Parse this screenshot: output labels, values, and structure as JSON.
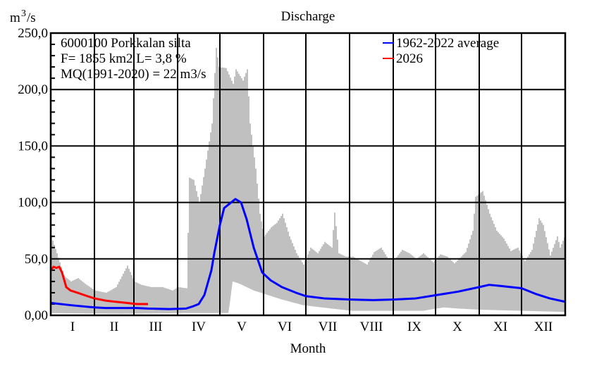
{
  "chart_data": {
    "type": "area",
    "title": "Discharge",
    "ylabel_base": "m",
    "ylabel_sup": "3",
    "ylabel_rest": "/s",
    "xlabel": "Month",
    "ylim": [
      0,
      250
    ],
    "xlim_days": [
      0,
      365
    ],
    "y_ticks": [
      "0,00",
      "50,0",
      "100,0",
      "150,0",
      "200,0",
      "250,0"
    ],
    "y_tick_values": [
      0,
      50,
      100,
      150,
      200,
      250
    ],
    "grid": true,
    "month_labels": [
      "I",
      "II",
      "III",
      "IV",
      "V",
      "VI",
      "VII",
      "VIII",
      "IX",
      "X",
      "XI",
      "XII"
    ],
    "month_start_days": [
      0,
      31,
      59,
      90,
      120,
      151,
      181,
      212,
      243,
      273,
      304,
      334,
      365
    ],
    "info": {
      "station": "6000100 Porkkalan silta",
      "area": "F=   1855 km2 L=  3,8 %",
      "mq": "MQ(1991-2020) = 22 m3/s"
    },
    "legend_position": "top-right",
    "colors": {
      "average": "#0000ff",
      "current": "#ff0000",
      "range": "#c0c0c0"
    },
    "series": [
      {
        "name": "1962-2022 average",
        "color": "#0000ff",
        "points": [
          [
            0,
            11
          ],
          [
            14,
            9
          ],
          [
            31,
            7
          ],
          [
            39,
            6.5
          ],
          [
            61,
            6.5
          ],
          [
            69,
            6
          ],
          [
            84,
            5.5
          ],
          [
            96,
            6
          ],
          [
            101,
            8
          ],
          [
            105,
            10
          ],
          [
            109,
            18
          ],
          [
            114,
            40
          ],
          [
            116,
            55
          ],
          [
            120,
            80
          ],
          [
            123,
            95
          ],
          [
            126,
            98
          ],
          [
            131,
            103
          ],
          [
            135,
            100
          ],
          [
            139,
            85
          ],
          [
            144,
            60
          ],
          [
            150,
            38
          ],
          [
            156,
            31
          ],
          [
            164,
            25
          ],
          [
            174,
            20
          ],
          [
            181,
            17
          ],
          [
            194,
            15
          ],
          [
            212,
            14
          ],
          [
            229,
            13.5
          ],
          [
            244,
            14
          ],
          [
            259,
            15
          ],
          [
            274,
            18
          ],
          [
            289,
            21
          ],
          [
            304,
            25
          ],
          [
            311,
            27
          ],
          [
            319,
            26
          ],
          [
            334,
            24
          ],
          [
            344,
            19
          ],
          [
            354,
            15
          ],
          [
            365,
            12
          ]
        ]
      },
      {
        "name": "2026",
        "color": "#ff0000",
        "points": [
          [
            0,
            40
          ],
          [
            2,
            43
          ],
          [
            4,
            42
          ],
          [
            6,
            43
          ],
          [
            8,
            38
          ],
          [
            11,
            25
          ],
          [
            14,
            22
          ],
          [
            19,
            20
          ],
          [
            26,
            17
          ],
          [
            31,
            15
          ],
          [
            39,
            13
          ],
          [
            46,
            12
          ],
          [
            54,
            11
          ],
          [
            61,
            10
          ],
          [
            69,
            10
          ]
        ]
      }
    ],
    "range_max": [
      [
        0,
        70
      ],
      [
        4,
        55
      ],
      [
        9,
        35
      ],
      [
        14,
        30
      ],
      [
        19,
        33
      ],
      [
        24,
        28
      ],
      [
        31,
        22
      ],
      [
        39,
        20
      ],
      [
        46,
        25
      ],
      [
        54,
        44
      ],
      [
        59,
        30
      ],
      [
        64,
        27
      ],
      [
        71,
        25
      ],
      [
        79,
        25
      ],
      [
        86,
        22
      ],
      [
        90,
        25
      ],
      [
        96,
        24
      ],
      [
        98,
        122
      ],
      [
        101,
        120
      ],
      [
        105,
        100
      ],
      [
        109,
        130
      ],
      [
        114,
        170
      ],
      [
        117,
        237
      ],
      [
        119,
        220
      ],
      [
        124,
        219
      ],
      [
        129,
        205
      ],
      [
        131,
        218
      ],
      [
        136,
        208
      ],
      [
        139,
        218
      ],
      [
        141,
        170
      ],
      [
        145,
        130
      ],
      [
        148,
        90
      ],
      [
        151,
        70
      ],
      [
        156,
        78
      ],
      [
        160,
        82
      ],
      [
        164,
        90
      ],
      [
        169,
        70
      ],
      [
        174,
        55
      ],
      [
        179,
        45
      ],
      [
        184,
        60
      ],
      [
        189,
        55
      ],
      [
        194,
        65
      ],
      [
        199,
        60
      ],
      [
        201,
        91
      ],
      [
        204,
        55
      ],
      [
        209,
        52
      ],
      [
        214,
        52
      ],
      [
        224,
        45
      ],
      [
        229,
        56
      ],
      [
        234,
        60
      ],
      [
        239,
        50
      ],
      [
        244,
        50
      ],
      [
        249,
        58
      ],
      [
        254,
        55
      ],
      [
        259,
        50
      ],
      [
        264,
        55
      ],
      [
        271,
        47
      ],
      [
        276,
        54
      ],
      [
        281,
        52
      ],
      [
        286,
        46
      ],
      [
        294,
        56
      ],
      [
        299,
        75
      ],
      [
        301,
        105
      ],
      [
        306,
        110
      ],
      [
        311,
        90
      ],
      [
        316,
        75
      ],
      [
        321,
        68
      ],
      [
        326,
        57
      ],
      [
        331,
        60
      ],
      [
        336,
        48
      ],
      [
        341,
        58
      ],
      [
        346,
        86
      ],
      [
        349,
        80
      ],
      [
        354,
        53
      ],
      [
        359,
        70
      ],
      [
        361,
        60
      ],
      [
        365,
        72
      ]
    ],
    "range_min": [
      [
        0,
        2
      ],
      [
        50,
        1.5
      ],
      [
        95,
        2
      ],
      [
        126,
        2
      ],
      [
        127,
        10
      ],
      [
        129,
        30
      ],
      [
        134,
        28
      ],
      [
        144,
        22
      ],
      [
        154,
        18
      ],
      [
        164,
        14
      ],
      [
        179,
        9
      ],
      [
        199,
        6
      ],
      [
        214,
        4
      ],
      [
        244,
        4
      ],
      [
        264,
        4
      ],
      [
        279,
        7
      ],
      [
        289,
        6
      ],
      [
        304,
        5
      ],
      [
        365,
        3
      ]
    ]
  }
}
